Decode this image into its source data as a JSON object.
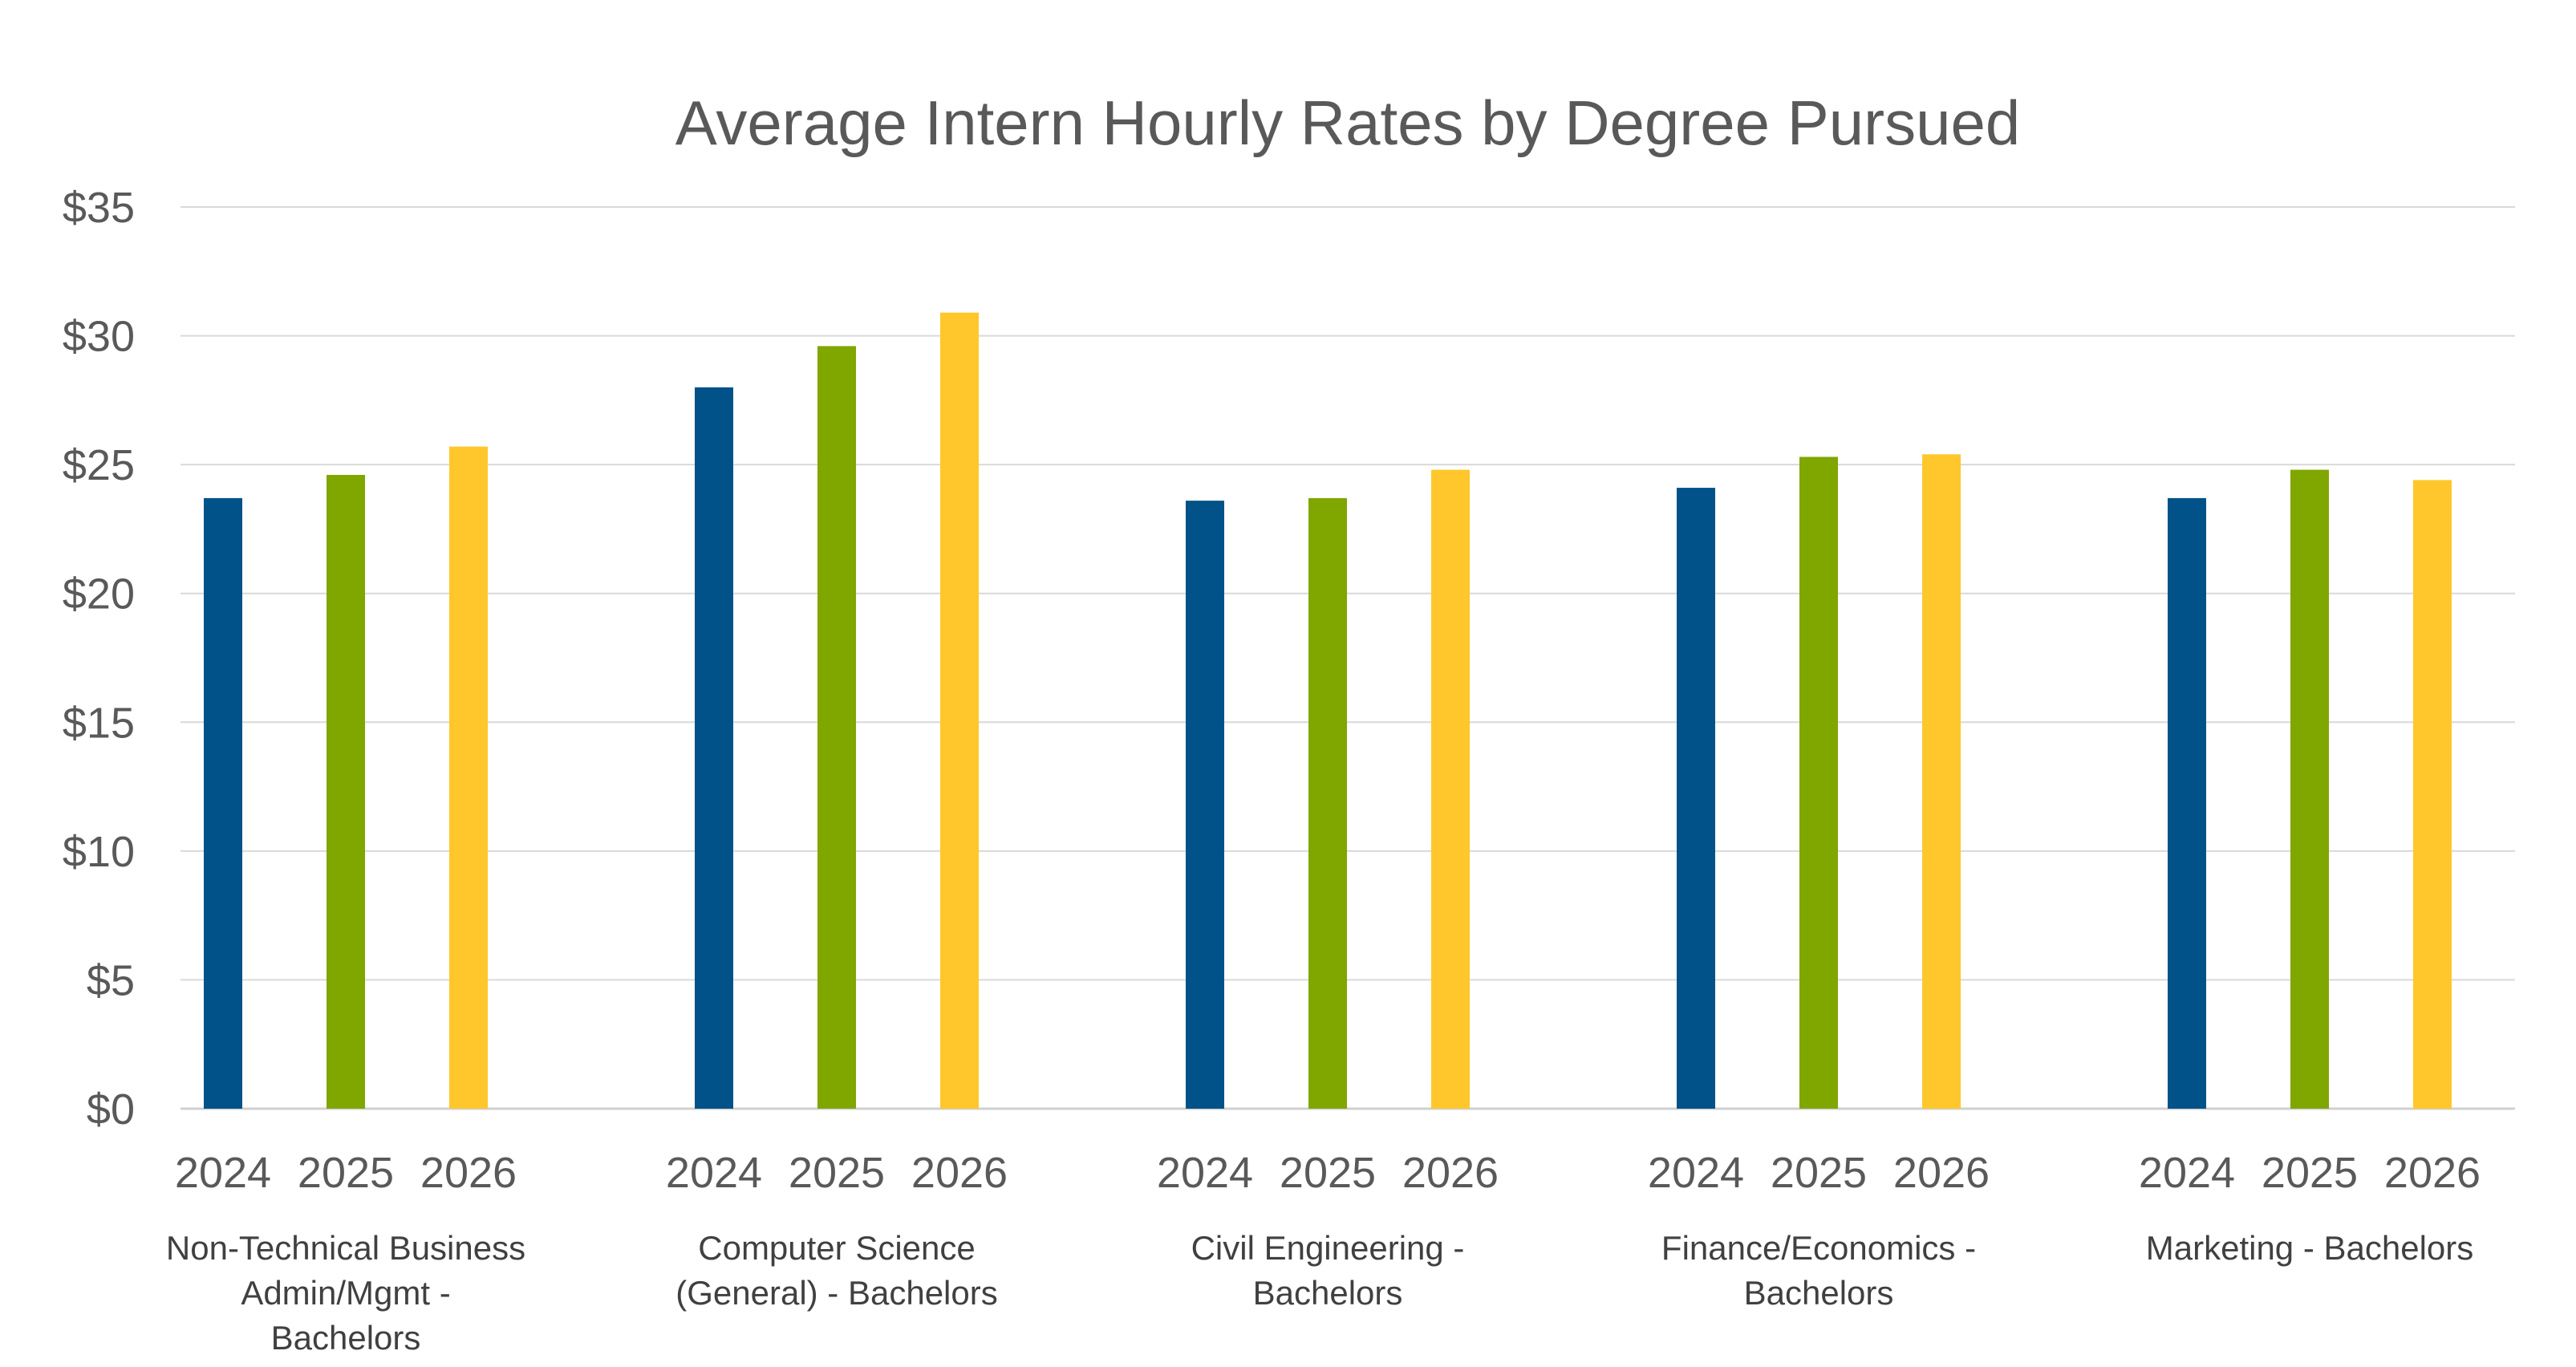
{
  "chart_data": {
    "type": "bar",
    "title": "Average Intern Hourly Rates by Degree Pursued",
    "xlabel": "",
    "ylabel": "",
    "ylim": [
      0,
      35
    ],
    "y_ticks": [
      "$0",
      "$5",
      "$10",
      "$15",
      "$20",
      "$25",
      "$30",
      "$35"
    ],
    "y_tick_values": [
      0,
      5,
      10,
      15,
      20,
      25,
      30,
      35
    ],
    "grid": true,
    "legend": "none",
    "groups": [
      {
        "category_lines": [
          "Non-Technical Business",
          "Admin/Mgmt -",
          "Bachelors"
        ],
        "years": [
          "2024",
          "2025",
          "2026"
        ],
        "values": [
          23.7,
          24.6,
          25.7
        ]
      },
      {
        "category_lines": [
          "Computer Science",
          "(General) - Bachelors"
        ],
        "years": [
          "2024",
          "2025",
          "2026"
        ],
        "values": [
          28.0,
          29.6,
          30.9
        ]
      },
      {
        "category_lines": [
          "Civil Engineering -",
          "Bachelors"
        ],
        "years": [
          "2024",
          "2025",
          "2026"
        ],
        "values": [
          23.6,
          23.7,
          24.8
        ]
      },
      {
        "category_lines": [
          "Finance/Economics -",
          "Bachelors"
        ],
        "years": [
          "2024",
          "2025",
          "2026"
        ],
        "values": [
          24.1,
          25.3,
          25.4
        ]
      },
      {
        "category_lines": [
          "Marketing - Bachelors"
        ],
        "years": [
          "2024",
          "2025",
          "2026"
        ],
        "values": [
          23.7,
          24.8,
          24.4
        ]
      }
    ],
    "colors": {
      "2024": "#005288",
      "2025": "#80a600",
      "2026": "#ffc72c",
      "grid": "#d9d9d9",
      "axis": "#d0d0d0"
    }
  }
}
